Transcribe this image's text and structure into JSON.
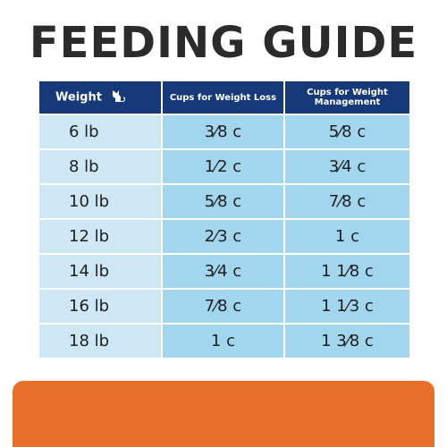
{
  "title": "FEEDING GUIDE",
  "table": {
    "headers": {
      "weight": "Weight",
      "loss": "Cups for Weight Loss",
      "management": "Cups for Weight Management"
    },
    "rows": [
      {
        "weight": "6 lb",
        "loss": "3⁄8 c",
        "management": "5⁄8 c"
      },
      {
        "weight": "8 lb",
        "loss": "1⁄2 c",
        "management": "3⁄4 c"
      },
      {
        "weight": "10 lb",
        "loss": "5⁄8 c",
        "management": "7⁄8 c"
      },
      {
        "weight": "12 lb",
        "loss": "2⁄3 c",
        "management": "1 c"
      },
      {
        "weight": "14 lb",
        "loss": "3⁄4 c",
        "management": "1 1⁄8 c"
      },
      {
        "weight": "16 lb",
        "loss": "7⁄8 c",
        "management": "1 1⁄3 c"
      },
      {
        "weight": "18 lb",
        "loss": "1 c",
        "management": "1 3⁄8 c"
      }
    ]
  },
  "icons": {
    "header_icon": "cat-icon"
  },
  "colors": {
    "header_bg": "#16397a",
    "weight_col_bg": "#cde7f5",
    "value_col_bg": "#a2d5ee",
    "title_text": "#2b2b2b",
    "accent_band": "#e8702a"
  }
}
